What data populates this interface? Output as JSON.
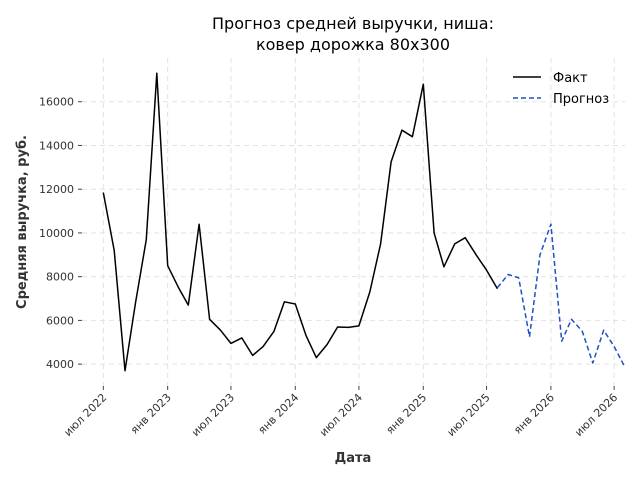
{
  "chart_data": {
    "type": "line",
    "title_line1": "Прогноз средней выручки, ниша:",
    "title_line2": "ковер дорожка 80х300",
    "xlabel": "Дата",
    "ylabel": "Средняя выручка, руб.",
    "xlim": [
      "2022-05-01",
      "2026-08-01"
    ],
    "ylim": [
      3000,
      18000
    ],
    "grid": true,
    "legend_position": "top-right",
    "y_ticks": [
      4000,
      6000,
      8000,
      10000,
      12000,
      14000,
      16000
    ],
    "x_ticks": [
      {
        "date": "2022-07-01",
        "label": "июл 2022"
      },
      {
        "date": "2023-01-01",
        "label": "янв 2023"
      },
      {
        "date": "2023-07-01",
        "label": "июл 2023"
      },
      {
        "date": "2024-01-01",
        "label": "янв 2024"
      },
      {
        "date": "2024-07-01",
        "label": "июл 2024"
      },
      {
        "date": "2025-01-01",
        "label": "янв 2025"
      },
      {
        "date": "2025-07-01",
        "label": "июл 2025"
      },
      {
        "date": "2026-01-01",
        "label": "янв 2026"
      },
      {
        "date": "2026-07-01",
        "label": "июл 2026"
      }
    ],
    "series": [
      {
        "name": "Факт",
        "color": "#000000",
        "style": "solid",
        "points": [
          [
            "2022-07-01",
            11850
          ],
          [
            "2022-08-01",
            9200
          ],
          [
            "2022-09-01",
            3700
          ],
          [
            "2022-10-01",
            6800
          ],
          [
            "2022-11-01",
            9700
          ],
          [
            "2022-12-01",
            17300
          ],
          [
            "2023-01-01",
            8500
          ],
          [
            "2023-02-01",
            7500
          ],
          [
            "2023-03-01",
            6700
          ],
          [
            "2023-04-01",
            10400
          ],
          [
            "2023-05-01",
            6050
          ],
          [
            "2023-06-01",
            5550
          ],
          [
            "2023-07-01",
            4950
          ],
          [
            "2023-08-01",
            5200
          ],
          [
            "2023-09-01",
            4400
          ],
          [
            "2023-10-01",
            4800
          ],
          [
            "2023-11-01",
            5500
          ],
          [
            "2023-12-01",
            6850
          ],
          [
            "2024-01-01",
            6750
          ],
          [
            "2024-02-01",
            5300
          ],
          [
            "2024-03-01",
            4300
          ],
          [
            "2024-04-01",
            4900
          ],
          [
            "2024-05-01",
            5700
          ],
          [
            "2024-06-01",
            5680
          ],
          [
            "2024-07-01",
            5750
          ],
          [
            "2024-08-01",
            7300
          ],
          [
            "2024-09-01",
            9500
          ],
          [
            "2024-10-01",
            13250
          ],
          [
            "2024-11-01",
            14700
          ],
          [
            "2024-12-01",
            14400
          ],
          [
            "2025-01-01",
            16800
          ],
          [
            "2025-02-01",
            10000
          ],
          [
            "2025-03-01",
            8450
          ],
          [
            "2025-04-01",
            9500
          ],
          [
            "2025-05-01",
            9780
          ],
          [
            "2025-06-01",
            9000
          ],
          [
            "2025-07-01",
            8300
          ],
          [
            "2025-08-01",
            7450
          ]
        ]
      },
      {
        "name": "Прогноз",
        "color": "#1f4fc8",
        "style": "dashed",
        "points": [
          [
            "2025-08-01",
            7500
          ],
          [
            "2025-09-01",
            8100
          ],
          [
            "2025-10-01",
            7950
          ],
          [
            "2025-11-01",
            5250
          ],
          [
            "2025-12-01",
            9000
          ],
          [
            "2026-01-01",
            10400
          ],
          [
            "2026-02-01",
            5050
          ],
          [
            "2026-03-01",
            6050
          ],
          [
            "2026-04-01",
            5500
          ],
          [
            "2026-05-01",
            4050
          ],
          [
            "2026-06-01",
            5550
          ],
          [
            "2026-07-01",
            4800
          ],
          [
            "2026-08-01",
            3850
          ]
        ]
      }
    ]
  }
}
